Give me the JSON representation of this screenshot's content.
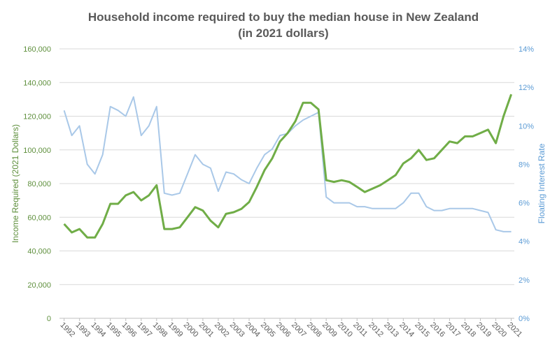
{
  "chart_data": {
    "type": "line",
    "title": "Household income required to buy the median house in New Zealand",
    "subtitle": "(in 2021 dollars)",
    "y_label": "Income Required (2021 Dollars)",
    "y2_label": "Floating Interest Rate",
    "grid": true,
    "xlim": [
      1991.7,
      2021.2
    ],
    "xticks": [
      1992,
      1993,
      1994,
      1995,
      1996,
      1997,
      1998,
      1999,
      2000,
      2001,
      2002,
      2003,
      2004,
      2005,
      2006,
      2007,
      2008,
      2009,
      2010,
      2011,
      2012,
      2013,
      2014,
      2015,
      2016,
      2017,
      2018,
      2019,
      2020,
      2021
    ],
    "ylim": [
      0,
      160000
    ],
    "yticks": [
      0,
      {
        "value": 20000,
        "label": "20,000"
      },
      {
        "value": 40000,
        "label": "40,000"
      },
      {
        "value": 60000,
        "label": "60,000"
      },
      {
        "value": 80000,
        "label": "80,000"
      },
      {
        "value": 100000,
        "label": "100,000"
      },
      {
        "value": 120000,
        "label": "120,000"
      },
      {
        "value": 140000,
        "label": "140,000"
      },
      {
        "value": 160000,
        "label": "160,000"
      }
    ],
    "y2lim": [
      0,
      14
    ],
    "y2ticks": [
      {
        "value": 0,
        "label": "0%"
      },
      {
        "value": 2,
        "label": "2%"
      },
      {
        "value": 4,
        "label": "4%"
      },
      {
        "value": 6,
        "label": "6%"
      },
      {
        "value": 8,
        "label": "8%"
      },
      {
        "value": 10,
        "label": "10%"
      },
      {
        "value": 12,
        "label": "12%"
      },
      {
        "value": 14,
        "label": "14%"
      }
    ],
    "x": [
      1992,
      1992.5,
      1993,
      1993.5,
      1994,
      1994.5,
      1995,
      1995.5,
      1996,
      1996.5,
      1997,
      1997.5,
      1998,
      1998.5,
      1999,
      1999.5,
      2000,
      2000.5,
      2001,
      2001.5,
      2002,
      2002.5,
      2003,
      2003.5,
      2004,
      2004.5,
      2005,
      2005.5,
      2006,
      2006.5,
      2007,
      2007.5,
      2008,
      2008.5,
      2009,
      2009.5,
      2010,
      2010.5,
      2011,
      2011.5,
      2012,
      2012.5,
      2013,
      2013.5,
      2014,
      2014.5,
      2015,
      2015.5,
      2016,
      2016.5,
      2017,
      2017.5,
      2018,
      2018.5,
      2019,
      2019.5,
      2020,
      2020.5,
      2021
    ],
    "series": [
      {
        "name": "Income Required",
        "color": "#70ad47",
        "axis": "y",
        "width": 3,
        "values": [
          56000,
          51000,
          53000,
          48000,
          48000,
          56000,
          68000,
          68000,
          73000,
          75000,
          70000,
          73000,
          79000,
          53000,
          53000,
          54000,
          60000,
          66000,
          64000,
          58000,
          54000,
          62000,
          63000,
          65000,
          69000,
          78000,
          88000,
          95000,
          105000,
          110000,
          117000,
          128000,
          128000,
          124000,
          82000,
          81000,
          82000,
          81000,
          78000,
          75000,
          77000,
          79000,
          82000,
          85000,
          92000,
          95000,
          100000,
          94000,
          95000,
          100000,
          105000,
          104000,
          108000,
          108000,
          110000,
          112000,
          104000,
          120000,
          133000
        ]
      },
      {
        "name": "Floating Interest Rate",
        "color": "#a9c8e8",
        "axis": "y2",
        "width": 2,
        "values": [
          10.8,
          9.5,
          10.0,
          8.0,
          7.5,
          8.5,
          11.0,
          10.8,
          10.5,
          11.5,
          9.5,
          10.0,
          11.0,
          6.5,
          6.4,
          6.5,
          7.5,
          8.5,
          8.0,
          7.8,
          6.6,
          7.6,
          7.5,
          7.2,
          7.0,
          7.8,
          8.5,
          8.8,
          9.5,
          9.6,
          10.0,
          10.3,
          10.5,
          10.7,
          6.3,
          6.0,
          6.0,
          6.0,
          5.8,
          5.8,
          5.7,
          5.7,
          5.7,
          5.7,
          6.0,
          6.5,
          6.5,
          5.8,
          5.6,
          5.6,
          5.7,
          5.7,
          5.7,
          5.7,
          5.6,
          5.5,
          4.6,
          4.5,
          4.5
        ]
      }
    ]
  }
}
